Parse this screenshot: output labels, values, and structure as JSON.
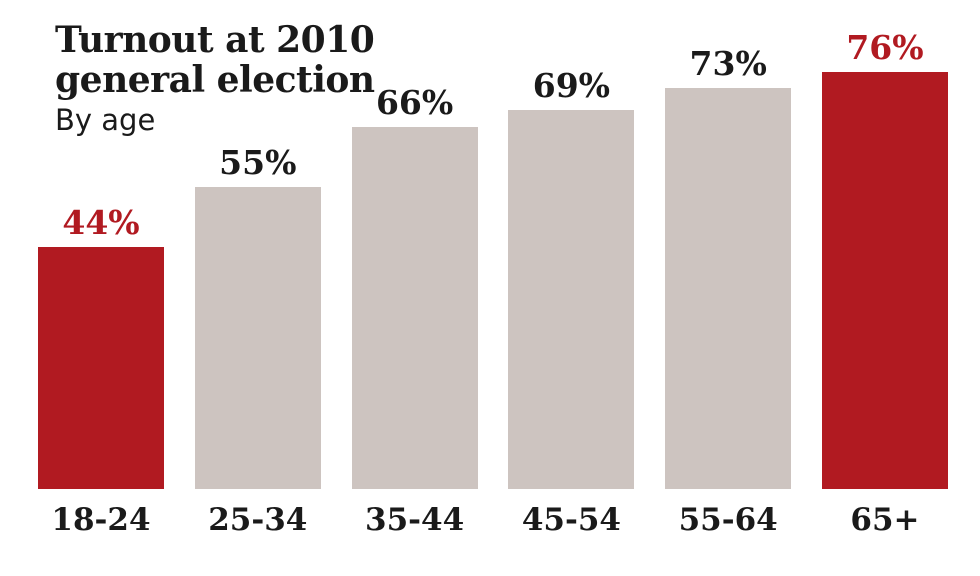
{
  "header": {
    "title_line1": "Turnout at 2010",
    "title_line2": "general election",
    "subtitle": "By age"
  },
  "chart_data": {
    "type": "bar",
    "orientation": "vertical",
    "title": "Turnout at 2010 general election",
    "subtitle": "By age",
    "categories": [
      "18-24",
      "25-34",
      "35-44",
      "45-54",
      "55-64",
      "65+"
    ],
    "values": [
      44,
      55,
      66,
      69,
      73,
      76
    ],
    "value_labels": [
      "44%",
      "55%",
      "66%",
      "69%",
      "73%",
      "76%"
    ],
    "highlighted_categories": [
      "18-24",
      "65+"
    ],
    "ylim": [
      0,
      80
    ],
    "grid": false,
    "legend": false,
    "xlabel": "",
    "ylabel": "",
    "colors": {
      "highlight_bar": "#B11A21",
      "default_bar": "#CDC4C0",
      "highlight_label": "#B11A21",
      "text": "#1A1A1A",
      "background": "#FFFFFF"
    }
  }
}
